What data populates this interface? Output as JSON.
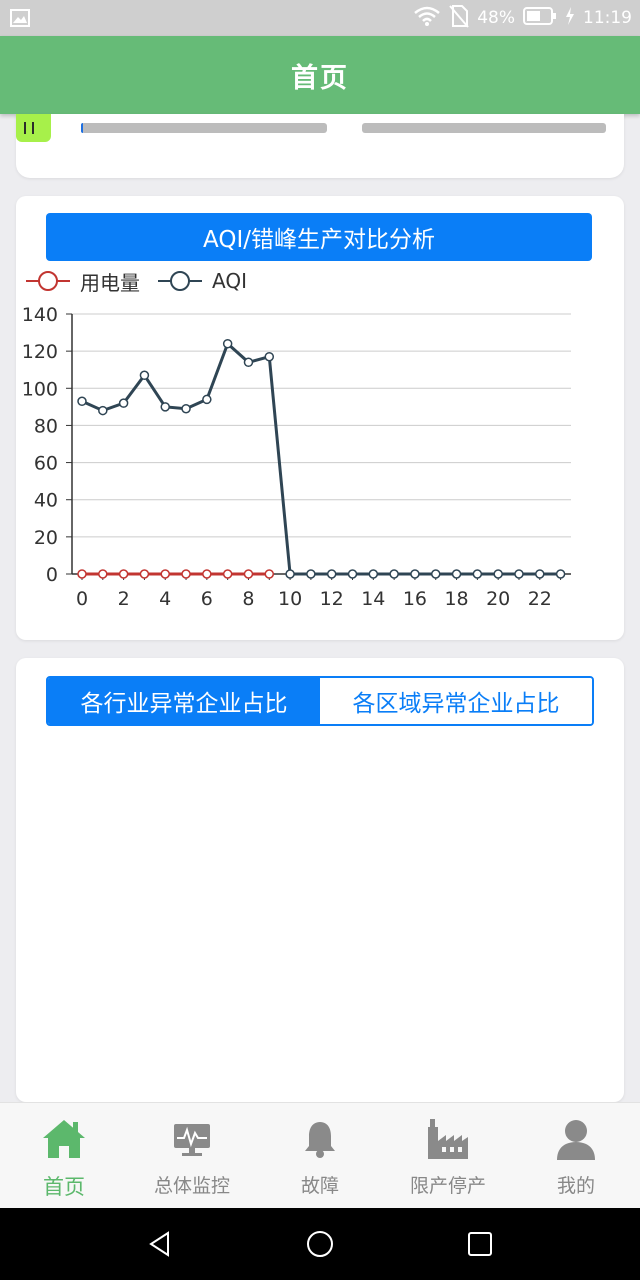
{
  "status_bar": {
    "battery": "48%",
    "time": "11:19",
    "icons": [
      "image-icon",
      "wifi-icon",
      "no-sim-icon",
      "battery-icon",
      "charging-icon"
    ]
  },
  "header": {
    "title": "首页"
  },
  "top_card": {
    "progress_bars": [
      {
        "fraction": 0.01
      },
      {
        "fraction": 0.0
      }
    ]
  },
  "chart_card": {
    "button_label": "AQI/错峰生产对比分析",
    "legend": [
      "用电量",
      "AQI"
    ]
  },
  "chart_data": {
    "type": "line",
    "x": [
      0,
      1,
      2,
      3,
      4,
      5,
      6,
      7,
      8,
      9,
      10,
      11,
      12,
      13,
      14,
      15,
      16,
      17,
      18,
      19,
      20,
      21,
      22,
      23
    ],
    "xticks": [
      "0",
      "2",
      "4",
      "6",
      "8",
      "10",
      "12",
      "14",
      "16",
      "18",
      "20",
      "22"
    ],
    "yticks": [
      "0",
      "20",
      "40",
      "60",
      "80",
      "100",
      "120",
      "140"
    ],
    "ylim": [
      0,
      140
    ],
    "grid": true,
    "legend_position": "top-left",
    "series": [
      {
        "name": "用电量",
        "color": "#c23531",
        "values": [
          0,
          0,
          0,
          0,
          0,
          0,
          0,
          0,
          0,
          0,
          null,
          null,
          null,
          null,
          null,
          null,
          null,
          null,
          null,
          null,
          null,
          null,
          null,
          null
        ]
      },
      {
        "name": "AQI",
        "color": "#2f4554",
        "values": [
          93,
          88,
          92,
          107,
          90,
          89,
          94,
          124,
          114,
          117,
          0,
          0,
          0,
          0,
          0,
          0,
          0,
          0,
          0,
          0,
          0,
          0,
          0,
          0
        ]
      }
    ]
  },
  "segment_card": {
    "tabs": [
      "各行业异常企业占比",
      "各区域异常企业占比"
    ],
    "active_index": 0
  },
  "bottom_nav": {
    "items": [
      {
        "label": "首页",
        "icon": "home-icon",
        "active": true
      },
      {
        "label": "总体监控",
        "icon": "monitor-icon",
        "active": false
      },
      {
        "label": "故障",
        "icon": "bell-icon",
        "active": false
      },
      {
        "label": "限产停产",
        "icon": "factory-icon",
        "active": false
      },
      {
        "label": "我的",
        "icon": "user-icon",
        "active": false
      }
    ]
  },
  "colors": {
    "header_bg": "#66bb77",
    "accent_blue": "#0a7ef7",
    "nav_active": "#5cb86c"
  }
}
